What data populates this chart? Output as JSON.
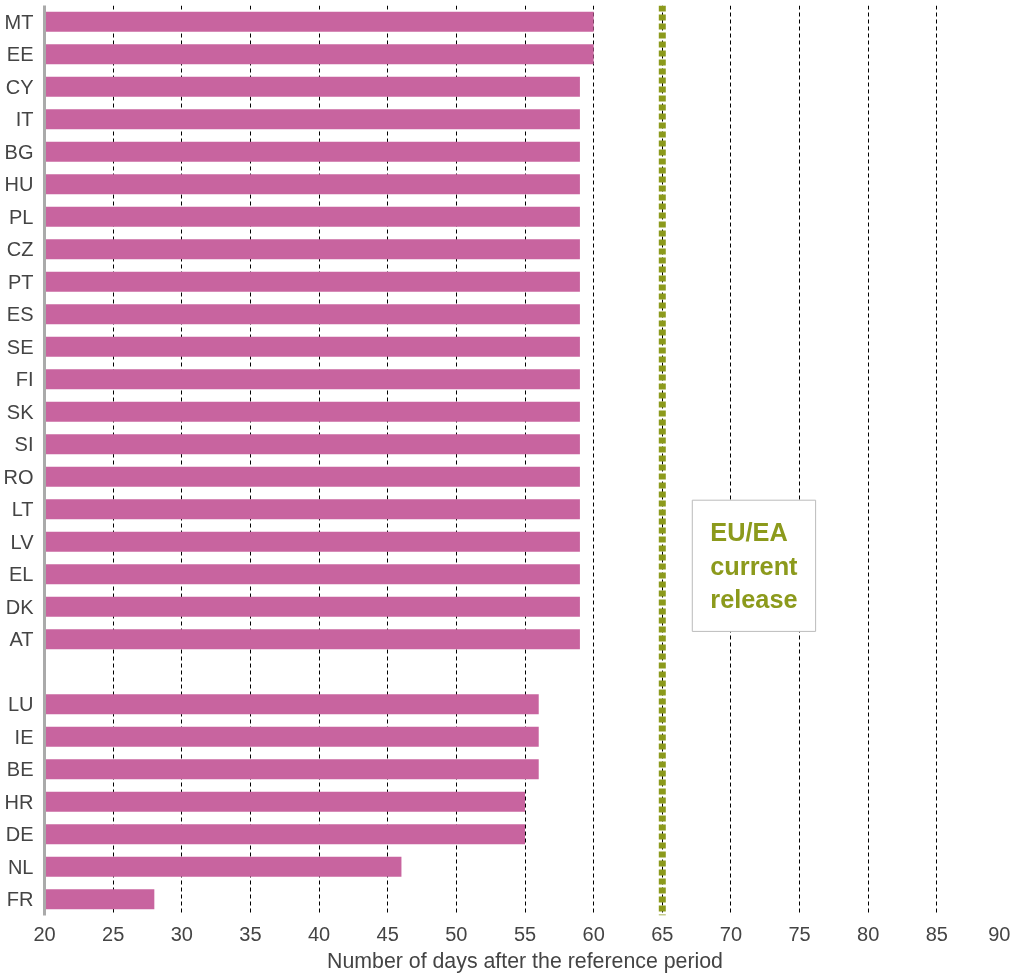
{
  "chart_data": {
    "type": "bar",
    "orientation": "horizontal",
    "xlabel": "Number of days after the reference period",
    "categories": [
      "MT",
      "EE",
      "CY",
      "IT",
      "BG",
      "HU",
      "PL",
      "CZ",
      "PT",
      "ES",
      "SE",
      "FI",
      "SK",
      "SI",
      "RO",
      "LT",
      "LV",
      "EL",
      "DK",
      "AT",
      null,
      "LU",
      "IE",
      "BE",
      "HR",
      "DE",
      "NL",
      "FR"
    ],
    "values": [
      60,
      60,
      59,
      59,
      59,
      59,
      59,
      59,
      59,
      59,
      59,
      59,
      59,
      59,
      59,
      59,
      59,
      59,
      59,
      59,
      null,
      56,
      56,
      56,
      55,
      55,
      46,
      28
    ],
    "color": "#c8649f",
    "xlim": [
      20,
      90
    ],
    "xticks": [
      20,
      25,
      30,
      35,
      40,
      45,
      50,
      55,
      60,
      65,
      70,
      75,
      80,
      85,
      90
    ],
    "grid": "x",
    "ref_lines": [
      {
        "axis": "x",
        "value": 65,
        "label": "EU/EA current release",
        "color": "#8c9a1c",
        "line_style": "dashed"
      }
    ]
  }
}
